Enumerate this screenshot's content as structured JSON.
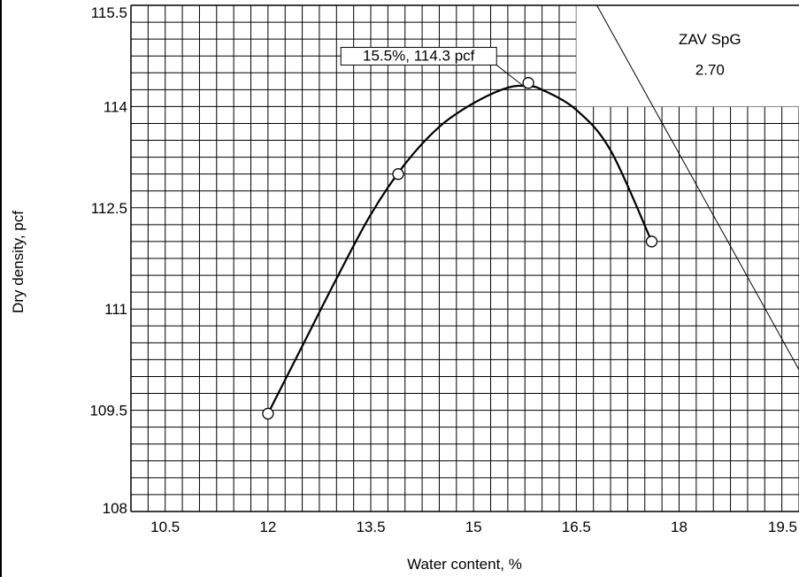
{
  "chart_data": {
    "type": "line",
    "title": "",
    "xlabel": "Water content, %",
    "ylabel": "Dry density, pcf",
    "xlim": [
      10.0,
      19.75
    ],
    "ylim": [
      108,
      115.5
    ],
    "x_ticks": [
      10.5,
      12,
      13.5,
      15,
      16.5,
      18,
      19.5
    ],
    "x_tick_labels": [
      "10.5",
      "12",
      "13.5",
      "15",
      "16.5",
      "18",
      "19.5"
    ],
    "y_ticks": [
      108,
      109.5,
      111,
      112.5,
      114,
      115.5
    ],
    "y_tick_labels": [
      "108",
      "109.5",
      "111",
      "112.5",
      "114",
      "115.5"
    ],
    "grid": true,
    "series": [
      {
        "points": [
          {
            "x": 12.0,
            "y": 109.45
          },
          {
            "x": 13.9,
            "y": 113.0
          },
          {
            "x": 15.8,
            "y": 114.35
          },
          {
            "x": 17.6,
            "y": 112.0
          }
        ],
        "curve": [
          [
            12.0,
            109.45
          ],
          [
            12.5,
            110.45
          ],
          [
            13.0,
            111.45
          ],
          [
            13.5,
            112.4
          ],
          [
            14.0,
            113.15
          ],
          [
            14.5,
            113.7
          ],
          [
            15.0,
            114.05
          ],
          [
            15.5,
            114.28
          ],
          [
            15.8,
            114.3
          ],
          [
            16.0,
            114.25
          ],
          [
            16.5,
            113.95
          ],
          [
            17.0,
            113.35
          ],
          [
            17.6,
            112.0
          ]
        ]
      },
      {
        "name": "ZAV SpG 2.70",
        "line": [
          [
            16.8,
            115.5
          ],
          [
            19.75,
            110.1
          ]
        ]
      }
    ],
    "annotations": [
      {
        "text": "15.5%, 114.3 pcf",
        "x": 15.5,
        "y": 114.3
      },
      {
        "text": "ZAV SpG",
        "x": 18.45,
        "y": 115.0
      },
      {
        "text": "2.70",
        "x": 18.45,
        "y": 114.55
      }
    ]
  }
}
